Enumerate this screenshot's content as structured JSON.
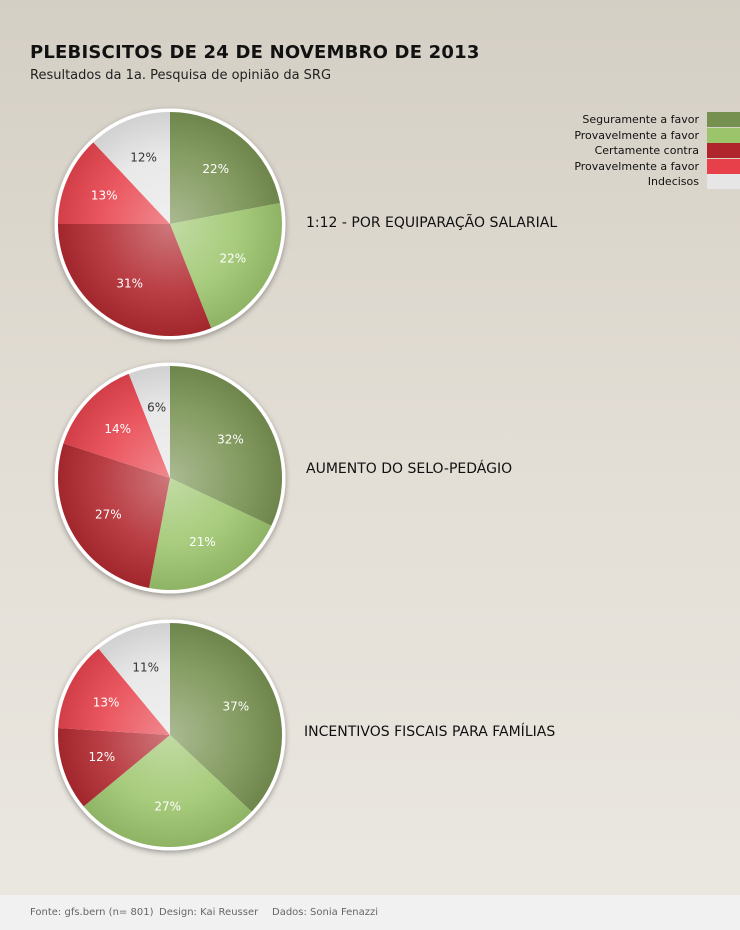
{
  "header": {
    "title": "PLEBISCITOS DE 24 DE NOVEMBRO DE 2013",
    "subtitle": "Resultados da 1a. Pesquisa de opinião da SRG"
  },
  "legend": [
    {
      "label": "Seguramente a favor",
      "color": "#76904f"
    },
    {
      "label": "Provavelmente a favor",
      "color": "#9cc56b"
    },
    {
      "label": "Certamente contra",
      "color": "#b0252c"
    },
    {
      "label": "Provavelmente a favor",
      "color": "#e8404a"
    },
    {
      "label": "Indecisos",
      "color": "#e6e6e6"
    }
  ],
  "chart_data": [
    {
      "type": "pie",
      "title": "1:12 - POR EQUIPARAÇÃO SALARIAL",
      "slices": [
        {
          "name": "Seguramente a favor",
          "value": 22,
          "label": "22%"
        },
        {
          "name": "Provavelmente a favor",
          "value": 22,
          "label": "22%"
        },
        {
          "name": "Certamente contra",
          "value": 31,
          "label": "31%"
        },
        {
          "name": "Provavelmente a favor",
          "value": 13,
          "label": "13%"
        },
        {
          "name": "Indecisos",
          "value": 12,
          "label": "12%"
        }
      ]
    },
    {
      "type": "pie",
      "title": "AUMENTO DO SELO-PEDÁGIO",
      "slices": [
        {
          "name": "Seguramente a favor",
          "value": 32,
          "label": "32%"
        },
        {
          "name": "Provavelmente a favor",
          "value": 21,
          "label": "21%"
        },
        {
          "name": "Certamente contra",
          "value": 27,
          "label": "27%"
        },
        {
          "name": "Provavelmente a favor",
          "value": 14,
          "label": "14%"
        },
        {
          "name": "Indecisos",
          "value": 6,
          "label": "6%"
        }
      ]
    },
    {
      "type": "pie",
      "title": "INCENTIVOS FISCAIS PARA FAMÍLIAS",
      "slices": [
        {
          "name": "Seguramente a favor",
          "value": 37,
          "label": "37%"
        },
        {
          "name": "Provavelmente a favor",
          "value": 27,
          "label": "27%"
        },
        {
          "name": "Certamente contra",
          "value": 12,
          "label": "12%"
        },
        {
          "name": "Provavelmente a favor",
          "value": 13,
          "label": "13%"
        },
        {
          "name": "Indecisos",
          "value": 11,
          "label": "11%"
        }
      ]
    }
  ],
  "footer": {
    "source": "Fonte: gfs.bern (n= 801)",
    "design": "Design: Kai Reusser",
    "data_credit": "Dados: Sonia Fenazzi"
  }
}
